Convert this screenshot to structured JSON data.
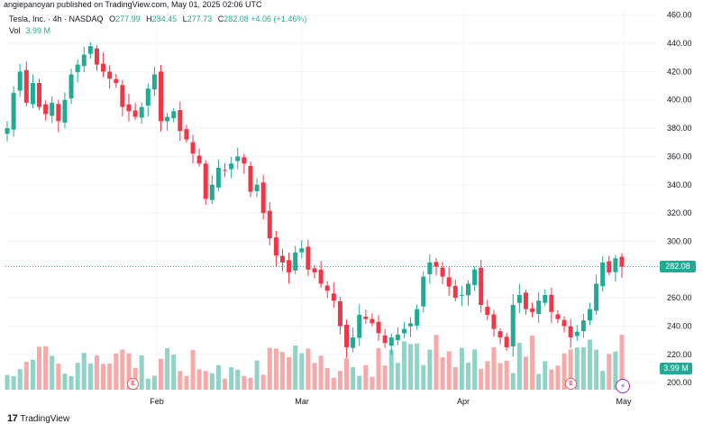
{
  "publisher": {
    "text": "angiepanoyan published on TradingView.com, May 01, 2025 02:06 UTC"
  },
  "legend": {
    "symbol": "Tesla, Inc. · 4h · NASDAQ",
    "open_label": "O",
    "open": "277.99",
    "high_label": "H",
    "high": "284.45",
    "low_label": "L",
    "low": "277.73",
    "close_label": "C",
    "close": "282.08",
    "change": "+4.06 (+1.46%)",
    "vol_label": "Vol",
    "vol_value": "3.99 M"
  },
  "badges": {
    "last_price": "282.08",
    "last_volume": "3.99 M"
  },
  "markers": {
    "earnings_1": "E",
    "earnings_2": "E",
    "flash_icon": "⚡"
  },
  "footer": {
    "logo_glyph": "17",
    "brand": "TradingView"
  },
  "colors": {
    "up": "#22ab94",
    "down": "#f23645",
    "vol_up": "#90d2c6",
    "vol_down": "#f7a9a7",
    "grid": "#f0f3fa"
  },
  "chart_data": {
    "type": "candlestick",
    "title": "",
    "y_ticks": [
      200,
      220,
      240,
      260,
      280,
      300,
      320,
      340,
      360,
      380,
      400,
      420,
      440,
      460
    ],
    "ylim": [
      195,
      463
    ],
    "x_ticks": [
      "Feb",
      "Mar",
      "Apr",
      "May"
    ],
    "last_price": 282.08,
    "closes": [
      380,
      405,
      420,
      398,
      412,
      395,
      390,
      398,
      385,
      400,
      418,
      425,
      432,
      438,
      425,
      420,
      415,
      412,
      395,
      392,
      388,
      395,
      408,
      418,
      385,
      388,
      392,
      378,
      372,
      362,
      355,
      330,
      340,
      352,
      350,
      355,
      360,
      355,
      335,
      340,
      320,
      302,
      290,
      285,
      278,
      292,
      295,
      280,
      278,
      270,
      265,
      258,
      240,
      225,
      232,
      248,
      245,
      242,
      235,
      228,
      232,
      234,
      238,
      242,
      252,
      275,
      285,
      282,
      275,
      268,
      260,
      262,
      270,
      280,
      255,
      248,
      238,
      232,
      225,
      255,
      262,
      252,
      250,
      258,
      262,
      250,
      245,
      240,
      232,
      236,
      244,
      252,
      270,
      285,
      278,
      288,
      282
    ]
  }
}
